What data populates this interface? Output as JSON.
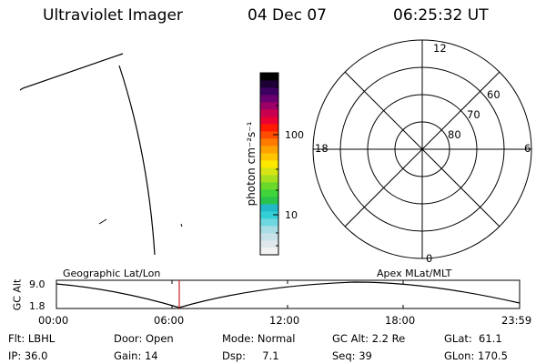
{
  "header": {
    "instrument": "Ultraviolet Imager",
    "date": "04 Dec 07",
    "time": "06:25:32 UT"
  },
  "colorbar": {
    "unit_label": "photon cm⁻²s⁻¹",
    "ticks": [
      "100",
      "10"
    ],
    "colors": [
      "#f2f2f2",
      "#e0e8ec",
      "#c8e2ea",
      "#a8dde6",
      "#6fd7df",
      "#33cfd6",
      "#22b8c8",
      "#2ac44a",
      "#3ed43a",
      "#6ad92b",
      "#a6df1f",
      "#d6e414",
      "#ffe800",
      "#ffc500",
      "#ffa200",
      "#ff7b00",
      "#ff4d00",
      "#ff1a00",
      "#ea0033",
      "#c8004f",
      "#9d0067",
      "#6a0070",
      "#3c0060",
      "#1d0036",
      "#000000"
    ]
  },
  "polar": {
    "mlt_labels": {
      "top": "12",
      "bottom": "0",
      "left": "18",
      "right": "6"
    },
    "lat_labels": [
      "60",
      "70",
      "80"
    ]
  },
  "timeline": {
    "ylabel": "GC Alt",
    "yticks": [
      "9.0",
      "1.8"
    ],
    "left_caption": "Geographic Lat/Lon",
    "right_caption": "Apex MLat/MLT",
    "xticks": [
      "00:00",
      "06:00",
      "12:00",
      "18:00",
      "23:59"
    ],
    "marker_color": "#cc2222"
  },
  "footer": {
    "col1": [
      "Flt: LBHL",
      "IP: 36.0"
    ],
    "col2": [
      "Door: Open",
      "Gain: 14"
    ],
    "col3": [
      "Mode: Normal",
      "Dsp:     7.1"
    ],
    "col4": [
      "GC Alt: 2.2 Re",
      "Seq: 39"
    ],
    "col5": [
      "GLat:  61.1",
      "GLon: 170.5"
    ]
  }
}
